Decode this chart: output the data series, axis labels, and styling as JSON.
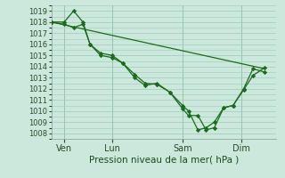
{
  "background_color": "#cce8dc",
  "grid_color": "#99ccbb",
  "line_color": "#1a6b1a",
  "marker_color": "#1a6b1a",
  "xlabel": "Pression niveau de la mer( hPa )",
  "ylim": [
    1007.5,
    1019.5
  ],
  "yticks": [
    1008,
    1009,
    1010,
    1011,
    1012,
    1013,
    1014,
    1015,
    1016,
    1017,
    1018,
    1019
  ],
  "xlim": [
    0,
    9.6
  ],
  "xtick_positions": [
    0.55,
    2.6,
    5.6,
    8.1
  ],
  "xtick_labels": [
    "Ven",
    "Lun",
    "Sam",
    "Dim"
  ],
  "vline_positions": [
    0.55,
    2.6,
    5.6,
    8.1
  ],
  "series1_x": [
    0.0,
    0.55,
    0.95,
    1.35,
    1.65,
    2.1,
    2.6,
    3.05,
    3.55,
    4.0,
    4.5,
    5.05,
    5.6,
    5.85,
    6.25,
    6.6,
    6.95,
    7.35,
    7.75,
    8.2,
    8.6,
    9.1
  ],
  "series1_y": [
    1018.0,
    1018.0,
    1019.0,
    1018.0,
    1016.0,
    1015.2,
    1015.0,
    1014.3,
    1013.3,
    1012.5,
    1012.4,
    1011.7,
    1010.5,
    1010.0,
    1008.3,
    1008.5,
    1009.0,
    1010.3,
    1010.5,
    1011.9,
    1013.2,
    1013.9
  ],
  "series2_x": [
    0.0,
    0.55,
    0.95,
    1.35,
    1.65,
    2.1,
    2.6,
    3.05,
    3.55,
    4.0,
    4.5,
    5.05,
    5.6,
    5.85,
    6.25,
    6.6,
    6.95,
    7.35,
    7.75,
    8.2,
    8.6,
    9.1
  ],
  "series2_y": [
    1018.0,
    1017.8,
    1017.5,
    1017.8,
    1016.0,
    1015.0,
    1014.8,
    1014.3,
    1013.0,
    1012.3,
    1012.5,
    1011.7,
    1010.2,
    1009.6,
    1009.6,
    1008.3,
    1008.5,
    1010.3,
    1010.5,
    1012.0,
    1013.8,
    1013.5
  ],
  "series3_x": [
    0.0,
    9.1
  ],
  "series3_y": [
    1018.0,
    1013.8
  ]
}
